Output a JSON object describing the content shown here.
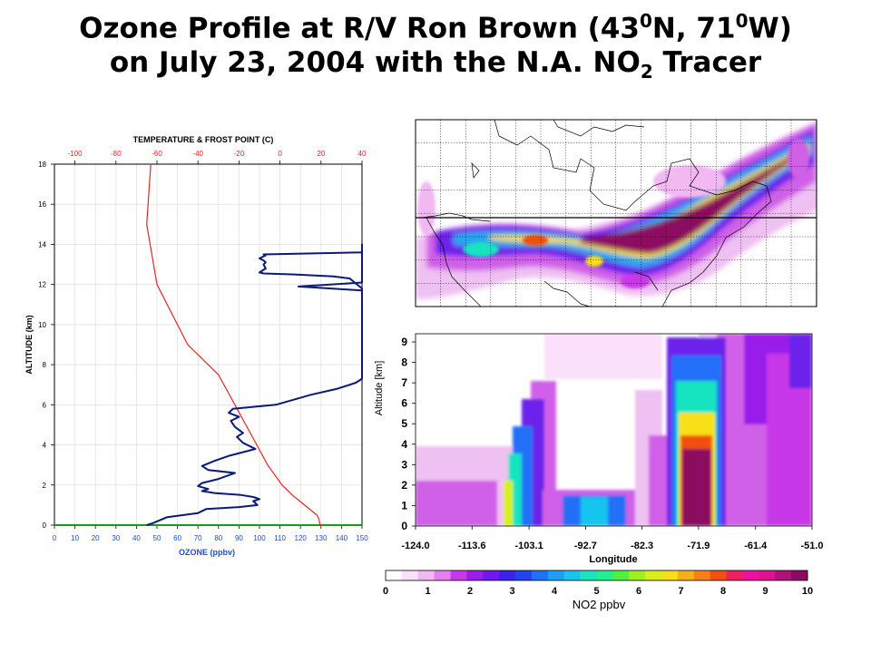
{
  "title": {
    "line1_pre": "Ozone Profile at  R/V Ron Brown (43",
    "line1_sup1": "0",
    "line1_mid": "N, 71",
    "line1_sup2": "0",
    "line1_post": "W)",
    "line2_pre": "on July 23, 2004 with the N.A. NO",
    "line2_sub": "2",
    "line2_post": " Tracer"
  },
  "colors": {
    "ozone": "#0a1a78",
    "temperature": "#ee2222",
    "top_axis": "#ee2222",
    "bottom_axis": "#1a4fd0",
    "green_line": "#1a9a1a"
  },
  "chart_data": [
    {
      "type": "line",
      "top_title": "TEMPERATURE & FROST POINT (C)",
      "xlabel": "OZONE (ppbv)",
      "ylabel": "ALTITUDE (km)",
      "grid": true,
      "xlim": [
        0,
        150
      ],
      "ylim": [
        0,
        18
      ],
      "top_xlim": [
        -110,
        40
      ],
      "x_ticks": [
        "0",
        "10",
        "20",
        "30",
        "40",
        "50",
        "60",
        "70",
        "80",
        "90",
        "100",
        "110",
        "120",
        "130",
        "140",
        "150"
      ],
      "top_ticks": [
        "-100",
        "-80",
        "-60",
        "-40",
        "-20",
        "0",
        "20",
        "40"
      ],
      "y_ticks": [
        "0",
        "2",
        "4",
        "6",
        "8",
        "10",
        "12",
        "14",
        "16",
        "18"
      ],
      "series": [
        {
          "name": "ozone",
          "x": [
            45,
            48,
            55,
            70,
            74,
            90,
            99,
            97,
            100,
            97,
            91,
            78,
            72,
            75,
            70,
            72,
            80,
            88,
            75,
            72,
            78,
            85,
            98,
            92,
            89,
            92,
            88,
            86,
            90,
            85,
            87,
            108,
            125,
            138,
            147,
            150,
            150,
            150,
            150,
            150,
            144,
            136,
            117,
            102,
            100,
            103,
            102,
            103,
            102,
            100,
            103,
            102,
            150,
            150,
            152,
            119,
            135,
            150,
            150,
            150
          ],
          "y": [
            0,
            0.1,
            0.4,
            0.6,
            0.8,
            0.9,
            1.0,
            1.2,
            1.3,
            1.4,
            1.5,
            1.6,
            1.7,
            1.8,
            1.95,
            2.1,
            2.3,
            2.6,
            2.75,
            2.95,
            3.2,
            3.45,
            3.8,
            4.1,
            4.4,
            4.6,
            4.9,
            5.2,
            5.4,
            5.6,
            5.8,
            6.0,
            6.5,
            6.8,
            7.1,
            7.3,
            7.8,
            9.3,
            10.6,
            11.8,
            12.3,
            12.4,
            12.5,
            12.55,
            12.6,
            12.8,
            13.0,
            13.1,
            13.2,
            13.3,
            13.45,
            13.5,
            13.6,
            14.0,
            12.1,
            11.9,
            11.8,
            11.7,
            11.5,
            11.3
          ]
        },
        {
          "name": "temperature",
          "t": [
            18,
            15,
            12,
            9,
            7.5,
            6,
            4.5,
            3,
            2,
            1.5,
            1,
            0.5,
            0.3,
            0
          ],
          "x": [
            -63,
            -65,
            -60,
            -45,
            -30,
            -22,
            -14,
            -6,
            1,
            6,
            12,
            18,
            19,
            19.5
          ],
          "y": [
            18,
            15,
            12,
            9,
            7.5,
            6,
            4.5,
            3,
            2,
            1.5,
            1,
            0.5,
            0.3,
            0
          ]
        }
      ]
    },
    {
      "type": "heatmap",
      "title": "",
      "grid": true,
      "description_source": "map of North America with NO2 tracer plume"
    },
    {
      "type": "heatmap",
      "xlabel": "Longitude",
      "ylabel": "Altitude [km]",
      "x_ticks": [
        "-124.0",
        "-113.6",
        "-103.1",
        "-92.7",
        "-82.3",
        "-71.9",
        "-61.4",
        "-51.0"
      ],
      "y_ticks": [
        "0",
        "1",
        "2",
        "3",
        "4",
        "5",
        "6",
        "7",
        "8",
        "9"
      ],
      "xlim": [
        -124.0,
        -51.0
      ],
      "ylim": [
        0,
        9.4
      ],
      "colorbar_label": "NO2 ppbv",
      "colorbar_ticks": [
        "0",
        "1",
        "2",
        "3",
        "4",
        "5",
        "6",
        "7",
        "8",
        "9",
        "10"
      ],
      "colorbar_colors": [
        "#ffffff",
        "#fbe0fb",
        "#f2b8f2",
        "#e680ee",
        "#c838e8",
        "#9a1eea",
        "#7018f0",
        "#3c20f0",
        "#2244f0",
        "#2070f8",
        "#1aa0f8",
        "#18c4f0",
        "#18e4c0",
        "#20f090",
        "#50f040",
        "#a0f020",
        "#d8f018",
        "#f8e018",
        "#f8b018",
        "#f88018",
        "#f05010",
        "#f02060",
        "#f010a0",
        "#e01090",
        "#b01078",
        "#8c0a60"
      ],
      "features": [
        {
          "name": "high column",
          "lon": -71.9,
          "top_km": 9.4,
          "peak": 10
        },
        {
          "name": "western plume",
          "lon": -103.1,
          "top_km": 6.4,
          "peak": 5
        },
        {
          "name": "eastern band",
          "lon": -58,
          "top_km": 9.4,
          "peak": 8
        }
      ]
    }
  ]
}
